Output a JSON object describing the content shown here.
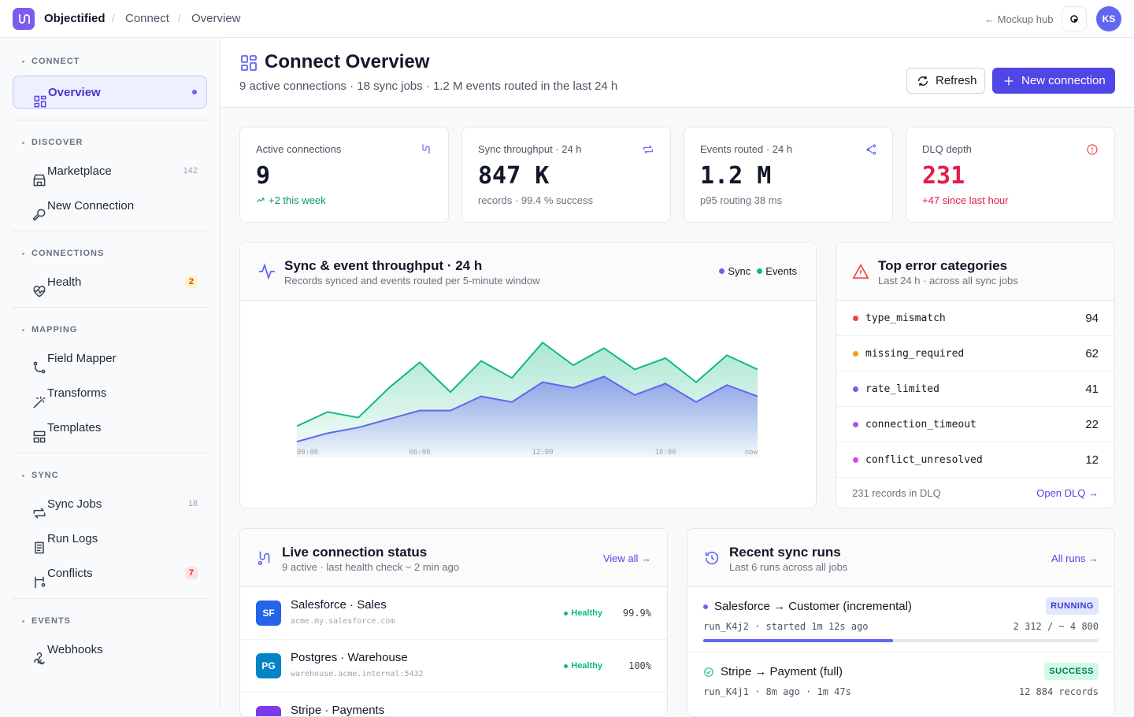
{
  "topbar": {
    "brand": "Objectified",
    "breadcrumb": [
      "Connect",
      "Overview"
    ],
    "back_link": "← Mockup hub",
    "avatar": "KS"
  },
  "sidebar": {
    "sections": [
      {
        "title": "CONNECT",
        "items": [
          {
            "label": "Overview"
          }
        ]
      },
      {
        "title": "DISCOVER",
        "items": [
          {
            "label": "Marketplace",
            "badge": 142
          },
          {
            "label": "New Connection"
          }
        ]
      },
      {
        "title": "CONNECTIONS",
        "items": [
          {
            "label": "Health",
            "badge": 2
          }
        ]
      },
      {
        "title": "MAPPING",
        "items": [
          {
            "label": "Field Mapper"
          },
          {
            "label": "Transforms"
          },
          {
            "label": "Templates"
          }
        ]
      },
      {
        "title": "SYNC",
        "items": [
          {
            "label": "Sync Jobs",
            "badge": 18
          },
          {
            "label": "Run Logs"
          },
          {
            "label": "Conflicts",
            "badge": 7
          }
        ]
      },
      {
        "title": "EVENTS",
        "items": [
          {
            "label": "Webhooks"
          }
        ]
      }
    ]
  },
  "header": {
    "title": "Connect Overview",
    "subtitle": "9 active connections · 18 sync jobs · 1.2 M events routed in the last 24 h",
    "buttons": [
      "Refresh",
      "New connection"
    ]
  },
  "kpis": [
    {
      "label": "Active connections",
      "value": 9,
      "note": "+2 this week"
    },
    {
      "label": "Sync throughput · 24 h",
      "value": "847 K",
      "note": "records · 99.4 % success"
    },
    {
      "label": "Events routed · 24 h",
      "value": "1.2 M",
      "note": "p95 routing 38 ms"
    },
    {
      "label": "DLQ depth",
      "value": 231,
      "note": "+47 since last hour"
    }
  ],
  "chart_data": {
    "type": "area",
    "title": "Sync & event throughput · 24 h",
    "subtitle": "Records synced and events routed per 5-minute window",
    "categories": [
      "00:00",
      null,
      null,
      null,
      "06:00",
      null,
      null,
      null,
      "12:00",
      null,
      null,
      null,
      "18:00",
      null,
      null,
      "now"
    ],
    "series": [
      {
        "name": "Sync",
        "color": "#6366f1",
        "values": [
          11,
          17,
          21,
          27,
          33,
          33,
          43,
          39,
          53,
          49,
          57,
          44,
          52,
          39,
          51,
          43
        ]
      },
      {
        "name": "Events",
        "color": "#10b981",
        "values": [
          22,
          32,
          28,
          49,
          67,
          46,
          68,
          56,
          81,
          65,
          77,
          62,
          70,
          53,
          72,
          62
        ]
      }
    ],
    "ylim": [
      0,
      100
    ]
  },
  "errors": {
    "title": "Top error categories",
    "subtitle": "Last 24 h · across all sync jobs",
    "rows": [
      {
        "name": "type_mismatch",
        "count": 94,
        "color": "#ef4444"
      },
      {
        "name": "missing_required",
        "count": 62,
        "color": "#f59e0b"
      },
      {
        "name": "rate_limited",
        "count": 41,
        "color": "#6366f1"
      },
      {
        "name": "connection_timeout",
        "count": 22,
        "color": "#a855f7"
      },
      {
        "name": "conflict_unresolved",
        "count": 12,
        "color": "#d946ef"
      }
    ],
    "footer": "231 records in DLQ",
    "link": "Open DLQ →"
  },
  "live": {
    "title": "Live connection status",
    "subtitle": "9 active · last health check ~ 2 min ago",
    "link": "View all →",
    "rows": [
      {
        "badge": "SF",
        "name": "Salesforce · Sales",
        "host": "acme.my.salesforce.com",
        "status": "Healthy",
        "uptime": "99.9%"
      },
      {
        "badge": "PG",
        "name": "Postgres · Warehouse",
        "host": "warehouse.acme.internal:5432",
        "status": "Healthy",
        "uptime": "100%"
      },
      {
        "name": "Stripe · Payments"
      }
    ]
  },
  "runs": {
    "title": "Recent sync runs",
    "subtitle": "Last 6 runs across all jobs",
    "link": "All runs →",
    "rows": [
      {
        "name": "Salesforce → Customer (incremental)",
        "status": "RUNNING",
        "meta": "run_K4j2 · started 1m 12s ago",
        "detail": "2 312 / ~ 4 800"
      },
      {
        "name": "Stripe → Payment (full)",
        "status": "SUCCESS",
        "meta": "run_K4j1 · 8m ago · 1m 47s",
        "detail": "12 884 records"
      }
    ]
  }
}
